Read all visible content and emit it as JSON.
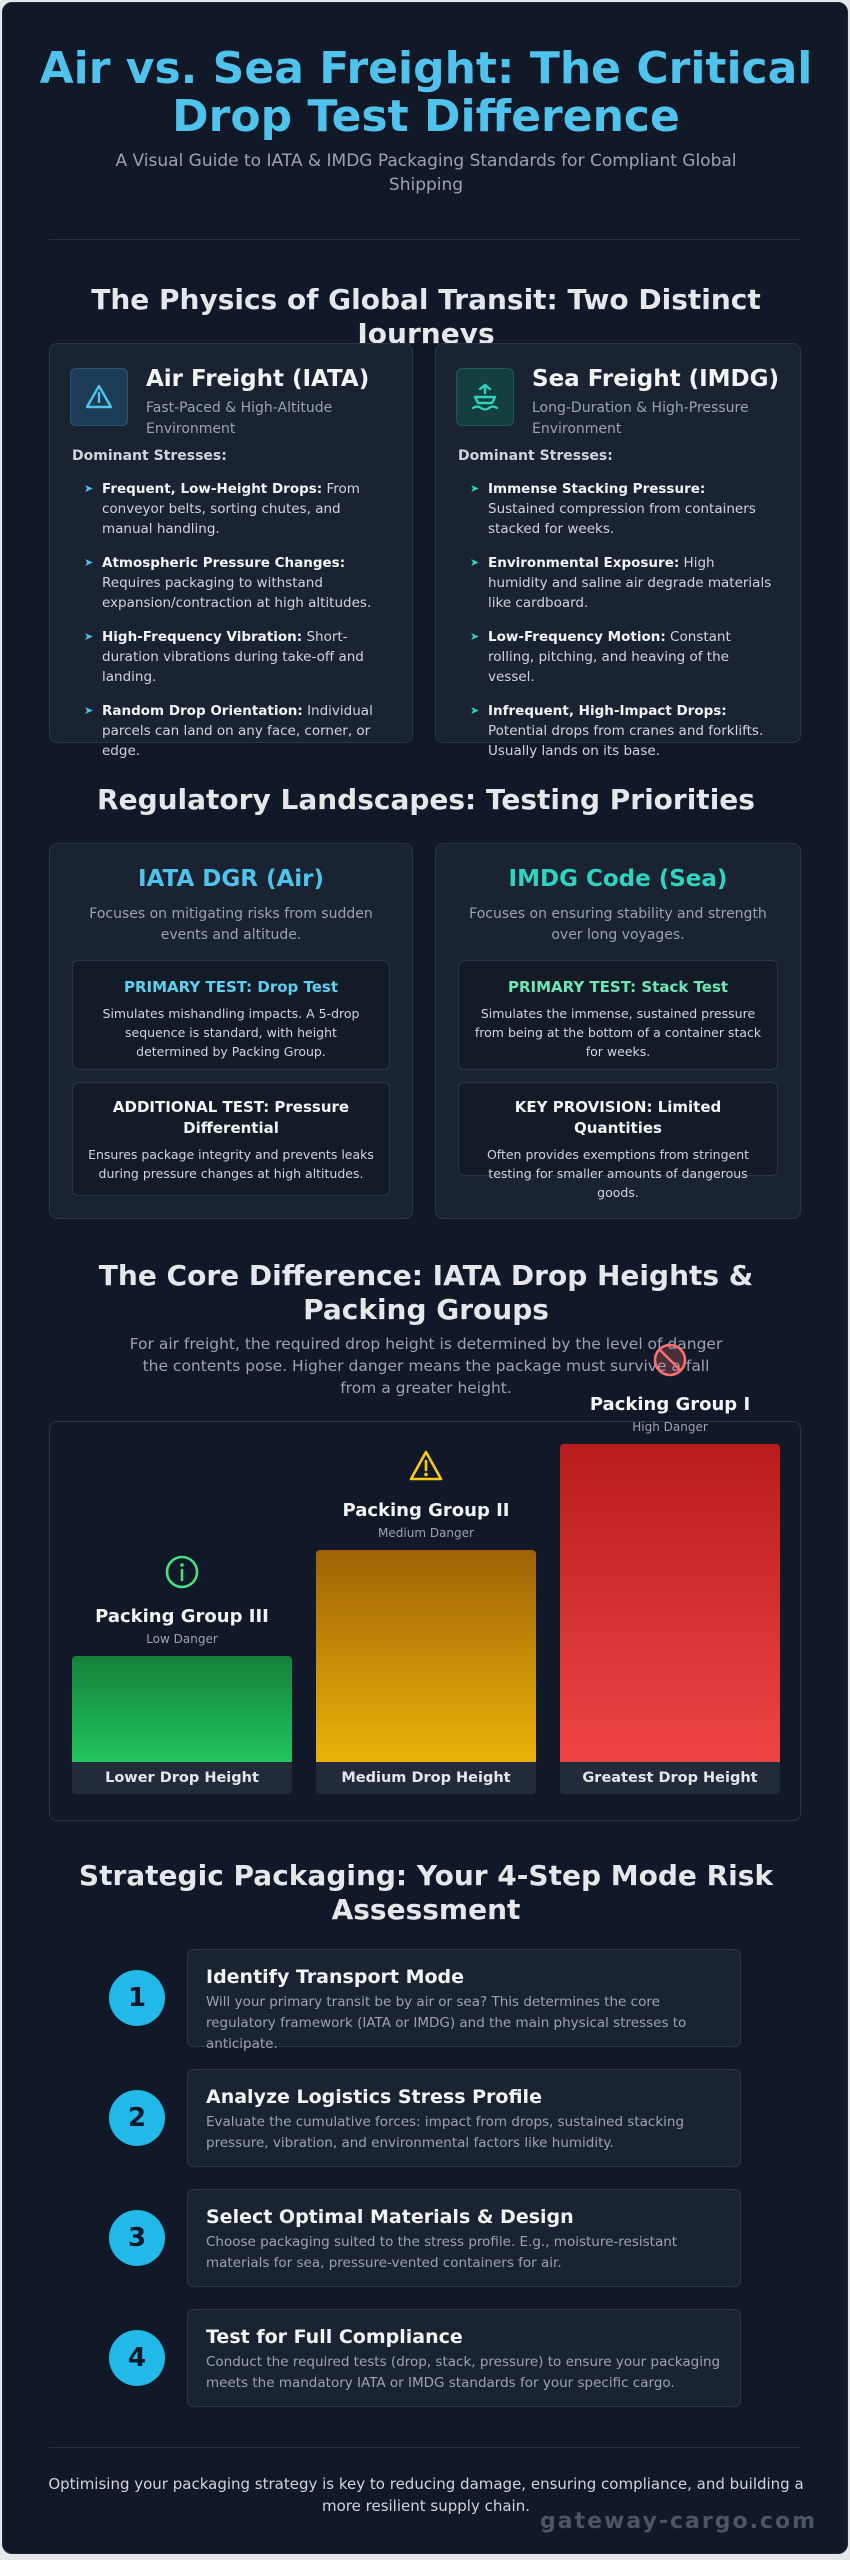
{
  "header": {
    "title": "Air vs. Sea Freight: The Critical Drop Test Difference",
    "subtitle": "A Visual Guide to IATA & IMDG Packaging Standards for Compliant Global Shipping"
  },
  "physics": {
    "title": "The Physics of Global Transit: Two Distinct Journeys",
    "dominant_label": "Dominant Stresses:",
    "air": {
      "title": "Air Freight (IATA)",
      "subtitle": "Fast-Paced & High-Altitude Environment",
      "icon": "warning-triangle-icon",
      "items": [
        {
          "bold": "Frequent, Low-Height Drops:",
          "text": " From conveyor belts, sorting chutes, and manual handling."
        },
        {
          "bold": "Atmospheric Pressure Changes:",
          "text": " Requires packaging to withstand expansion/contraction at high altitudes."
        },
        {
          "bold": "High-Frequency Vibration:",
          "text": " Short-duration vibrations during take-off and landing."
        },
        {
          "bold": "Random Drop Orientation:",
          "text": " Individual parcels can land on any face, corner, or edge."
        }
      ]
    },
    "sea": {
      "title": "Sea Freight (IMDG)",
      "subtitle": "Long-Duration & High-Pressure Environment",
      "icon": "ship-icon",
      "items": [
        {
          "bold": "Immense Stacking Pressure:",
          "text": " Sustained compression from containers stacked for weeks."
        },
        {
          "bold": "Environmental Exposure:",
          "text": " High humidity and saline air degrade materials like cardboard."
        },
        {
          "bold": "Low-Frequency Motion:",
          "text": " Constant rolling, pitching, and heaving of the vessel."
        },
        {
          "bold": "Infrequent, High-Impact Drops:",
          "text": " Potential drops from cranes and forklifts. Usually lands on its base."
        }
      ]
    }
  },
  "regulatory": {
    "title": "Regulatory Landscapes: Testing Priorities",
    "iata": {
      "title": "IATA DGR (Air)",
      "desc": "Focuses on mitigating risks from sudden events and altitude.",
      "primary_head": "PRIMARY TEST: Drop Test",
      "primary_body": "Simulates mishandling impacts. A 5-drop sequence is standard, with height determined by Packing Group.",
      "additional_head": "ADDITIONAL TEST: Pressure Differential",
      "additional_body": "Ensures package integrity and prevents leaks during pressure changes at high altitudes."
    },
    "imdg": {
      "title": "IMDG Code (Sea)",
      "desc": "Focuses on ensuring stability and strength over long voyages.",
      "primary_head": "PRIMARY TEST: Stack Test",
      "primary_body": "Simulates the immense, sustained pressure from being at the bottom of a container stack for weeks.",
      "key_head": "KEY PROVISION: Limited Quantities",
      "key_body": "Often provides exemptions from stringent testing for smaller amounts of dangerous goods."
    }
  },
  "core": {
    "title": "The Core Difference: IATA Drop Heights & Packing Groups",
    "desc": "For air freight, the required drop height is determined by the level of danger the contents pose. Higher danger means the package must survive a fall from a greater height."
  },
  "chart_data": {
    "type": "bar",
    "categories": [
      "Packing Group III",
      "Packing Group II",
      "Packing Group I"
    ],
    "danger_labels": [
      "Low Danger",
      "Medium Danger",
      "High Danger"
    ],
    "bar_labels": [
      "Lower Drop Height",
      "Medium Drop Height",
      "Greatest Drop Height"
    ],
    "values": [
      1,
      2,
      3
    ],
    "icons": [
      "info-circle-icon",
      "warning-triangle-icon",
      "prohibited-icon"
    ],
    "colors": [
      [
        "#15803d",
        "#22c55e"
      ],
      [
        "#a16207",
        "#eab308"
      ],
      [
        "#b91c1c",
        "#ef4444"
      ]
    ],
    "icon_colors": [
      "#4ade80",
      "#facc15",
      "#f87171"
    ]
  },
  "strategy": {
    "title": "Strategic Packaging: Your 4-Step Mode Risk Assessment",
    "steps": [
      {
        "num": "1",
        "title": "Identify Transport Mode",
        "desc": "Will your primary transit be by air or sea? This determines the core regulatory framework (IATA or IMDG) and the main physical stresses to anticipate."
      },
      {
        "num": "2",
        "title": "Analyze Logistics Stress Profile",
        "desc": "Evaluate the cumulative forces: impact from drops, sustained stacking pressure, vibration, and environmental factors like humidity."
      },
      {
        "num": "3",
        "title": "Select Optimal Materials & Design",
        "desc": "Choose packaging suited to the stress profile. E.g., moisture-resistant materials for sea, pressure-vented containers for air."
      },
      {
        "num": "4",
        "title": "Test for Full Compliance",
        "desc": "Conduct the required tests (drop, stack, pressure) to ensure your packaging meets the mandatory IATA or IMDG standards for your specific cargo."
      }
    ]
  },
  "footer": {
    "text": "Optimising your packaging strategy is key to reducing damage, ensuring compliance, and building a more resilient supply chain.",
    "brand": "gateway-cargo.com"
  },
  "colors": {
    "accent_blue": "#4fc3ec",
    "accent_teal": "#2dd4bf",
    "accent_green": "#6ee7b7",
    "step_circle": "#22b8e8"
  }
}
